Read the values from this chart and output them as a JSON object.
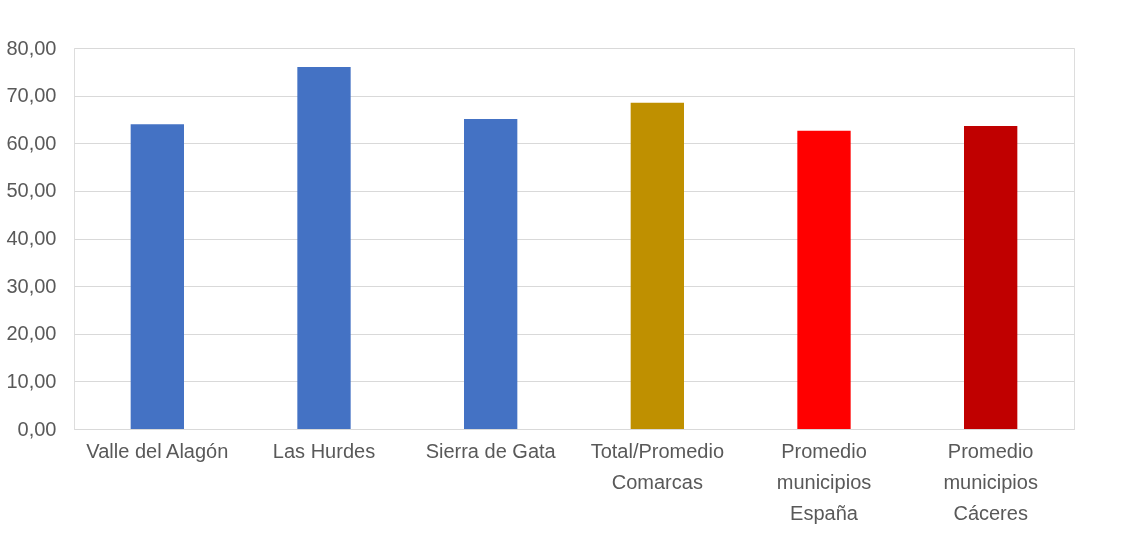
{
  "chart_data": {
    "type": "bar",
    "categories": [
      "Valle del Alagón",
      "Las Hurdes",
      "Sierra de Gata",
      "Total/Promedio\nComarcas",
      "Promedio\nmunicipios\nEspaña",
      "Promedio\nmunicipios\nCáceres"
    ],
    "values": [
      64.0,
      76.0,
      65.1,
      68.5,
      62.6,
      63.6
    ],
    "colors": [
      "#4472c4",
      "#4472c4",
      "#4472c4",
      "#bf9000",
      "#ff0000",
      "#c00000"
    ],
    "ylim": [
      0,
      80
    ],
    "yticks": [
      {
        "value": 0,
        "label": "0,00"
      },
      {
        "value": 10,
        "label": "10,00"
      },
      {
        "value": 20,
        "label": "20,00"
      },
      {
        "value": 30,
        "label": "30,00"
      },
      {
        "value": 40,
        "label": "40,00"
      },
      {
        "value": 50,
        "label": "50,00"
      },
      {
        "value": 60,
        "label": "60,00"
      },
      {
        "value": 70,
        "label": "70,00"
      },
      {
        "value": 80,
        "label": "80,00"
      }
    ],
    "grid": "y"
  }
}
